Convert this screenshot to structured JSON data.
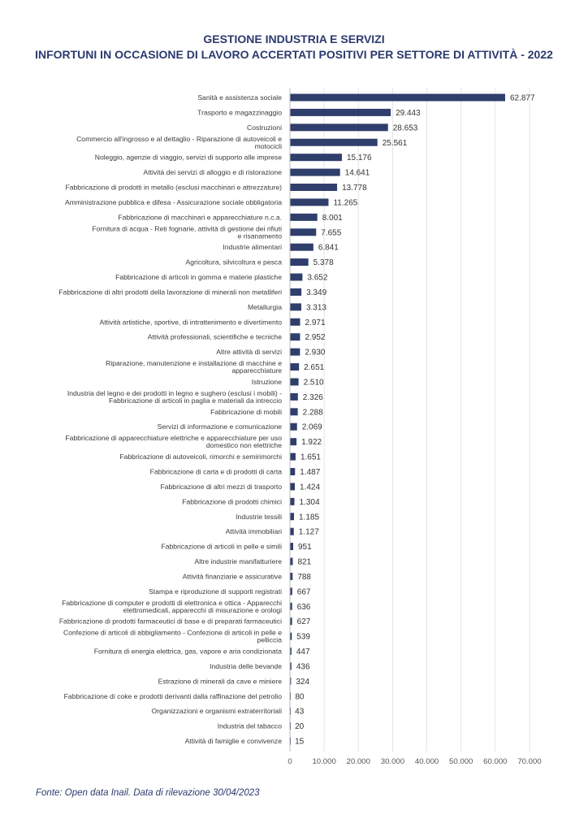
{
  "header": {
    "title_line1": "GESTIONE INDUSTRIA E SERVIZI",
    "title_line2": "INFORTUNI IN OCCASIONE DI LAVORO ACCERTATI POSITIVI PER SETTORE DI ATTIVITÀ - 2022"
  },
  "footer": {
    "source": "Fonte: Open data Inail. Data di rilevazione 30/04/2023"
  },
  "chart_data": {
    "type": "bar",
    "orientation": "horizontal",
    "title": "GESTIONE INDUSTRIA E SERVIZI — INFORTUNI IN OCCASIONE DI LAVORO ACCERTATI POSITIVI PER SETTORE DI ATTIVITÀ - 2022",
    "bar_color": "#2f3e6b",
    "xlim": [
      0,
      70000
    ],
    "xticks": [
      0,
      10000,
      20000,
      30000,
      40000,
      50000,
      60000,
      70000
    ],
    "xtick_labels": [
      "0",
      "10.000",
      "20.000",
      "30.000",
      "40.000",
      "50.000",
      "60.000",
      "70.000"
    ],
    "grid": true,
    "categories": [
      [
        "Sanità e assistenza sociale"
      ],
      [
        "Trasporto e magazzinaggio"
      ],
      [
        "Costruzioni"
      ],
      [
        "Commercio all'ingrosso e al dettaglio - Riparazione di autoveicoli e",
        "motocicli"
      ],
      [
        "Noleggio, agenzie di viaggio, servizi di supporto alle imprese"
      ],
      [
        "Attività dei servizi di alloggio e di ristorazione"
      ],
      [
        "Fabbricazione di prodotti in metallo (esclusi macchinari e attrezzature)"
      ],
      [
        "Amministrazione pubblica e difesa - Assicurazione sociale obbligatoria"
      ],
      [
        "Fabbricazione di macchinari e apparecchiature n.c.a."
      ],
      [
        "Fornitura di acqua - Reti fognarie, attività di gestione dei rifiuti",
        "e risanamento"
      ],
      [
        "Industrie alimentari"
      ],
      [
        "Agricoltura, silvicoltura e pesca"
      ],
      [
        "Fabbricazione di articoli in gomma e materie plastiche"
      ],
      [
        "Fabbricazione di altri prodotti della lavorazione di minerali non metalliferi"
      ],
      [
        "Metallurgia"
      ],
      [
        "Attività artistiche, sportive, di intrattenimento e divertimento"
      ],
      [
        "Attività professionali, scientifiche e tecniche"
      ],
      [
        "Altre attività di servizi"
      ],
      [
        "Riparazione, manutenzione e installazione di macchine e",
        "apparecchiature"
      ],
      [
        "Istruzione"
      ],
      [
        "Industria del legno e dei prodotti in legno e sughero (esclusi i mobili) -",
        "Fabbricazione di articoli in paglia e materiali da intreccio"
      ],
      [
        "Fabbricazione di mobili"
      ],
      [
        "Servizi di informazione e comunicazione"
      ],
      [
        "Fabbricazione di apparecchiature elettriche e apparecchiature per uso",
        "domestico non elettriche"
      ],
      [
        "Fabbricazione di autoveicoli, rimorchi e semirimorchi"
      ],
      [
        "Fabbricazione di carta e di prodotti di carta"
      ],
      [
        "Fabbricazione di altri mezzi di trasporto"
      ],
      [
        "Fabbricazione di prodotti chimici"
      ],
      [
        "Industrie tessili"
      ],
      [
        "Attività immobiliari"
      ],
      [
        "Fabbricazione di articoli in pelle e simili"
      ],
      [
        "Altre industrie manifatturiere"
      ],
      [
        "Attività finanziarie e assicurative"
      ],
      [
        "Stampa e riproduzione di supporti registrati"
      ],
      [
        "Fabbricazione di computer e prodotti di elettronica e ottica - Apparecchi",
        "elettromedicali, apparecchi di misurazione e orologi"
      ],
      [
        "Fabbricazione di prodotti farmaceutici di base e di preparati farmaceutici"
      ],
      [
        "Confezione di articoli di abbigliamento - Confezione di articoli in pelle e",
        "pelliccia"
      ],
      [
        "Fornitura di energia elettrica, gas, vapore e aria condizionata"
      ],
      [
        "Industria delle bevande"
      ],
      [
        "Estrazione di minerali da cave e miniere"
      ],
      [
        "Fabbricazione di coke e prodotti derivanti dalla raffinazione del petrolio"
      ],
      [
        "Organizzazioni e organismi extraterritoriali"
      ],
      [
        "Industria del tabacco"
      ],
      [
        "Attività di famiglie e convivenze"
      ]
    ],
    "values": [
      62877,
      29443,
      28653,
      25561,
      15176,
      14641,
      13778,
      11265,
      8001,
      7655,
      6841,
      5378,
      3652,
      3349,
      3313,
      2971,
      2952,
      2930,
      2651,
      2510,
      2326,
      2288,
      2069,
      1922,
      1651,
      1487,
      1424,
      1304,
      1185,
      1127,
      951,
      821,
      788,
      667,
      636,
      627,
      539,
      447,
      436,
      324,
      80,
      43,
      20,
      15
    ],
    "value_labels": [
      "62.877",
      "29.443",
      "28.653",
      "25.561",
      "15.176",
      "14.641",
      "13.778",
      "11.265",
      "8.001",
      "7.655",
      "6.841",
      "5.378",
      "3.652",
      "3.349",
      "3.313",
      "2.971",
      "2.952",
      "2.930",
      "2.651",
      "2.510",
      "2.326",
      "2.288",
      "2.069",
      "1.922",
      "1.651",
      "1.487",
      "1.424",
      "1.304",
      "1.185",
      "1.127",
      "951",
      "821",
      "788",
      "667",
      "636",
      "627",
      "539",
      "447",
      "436",
      "324",
      "80",
      "43",
      "20",
      "15"
    ]
  }
}
